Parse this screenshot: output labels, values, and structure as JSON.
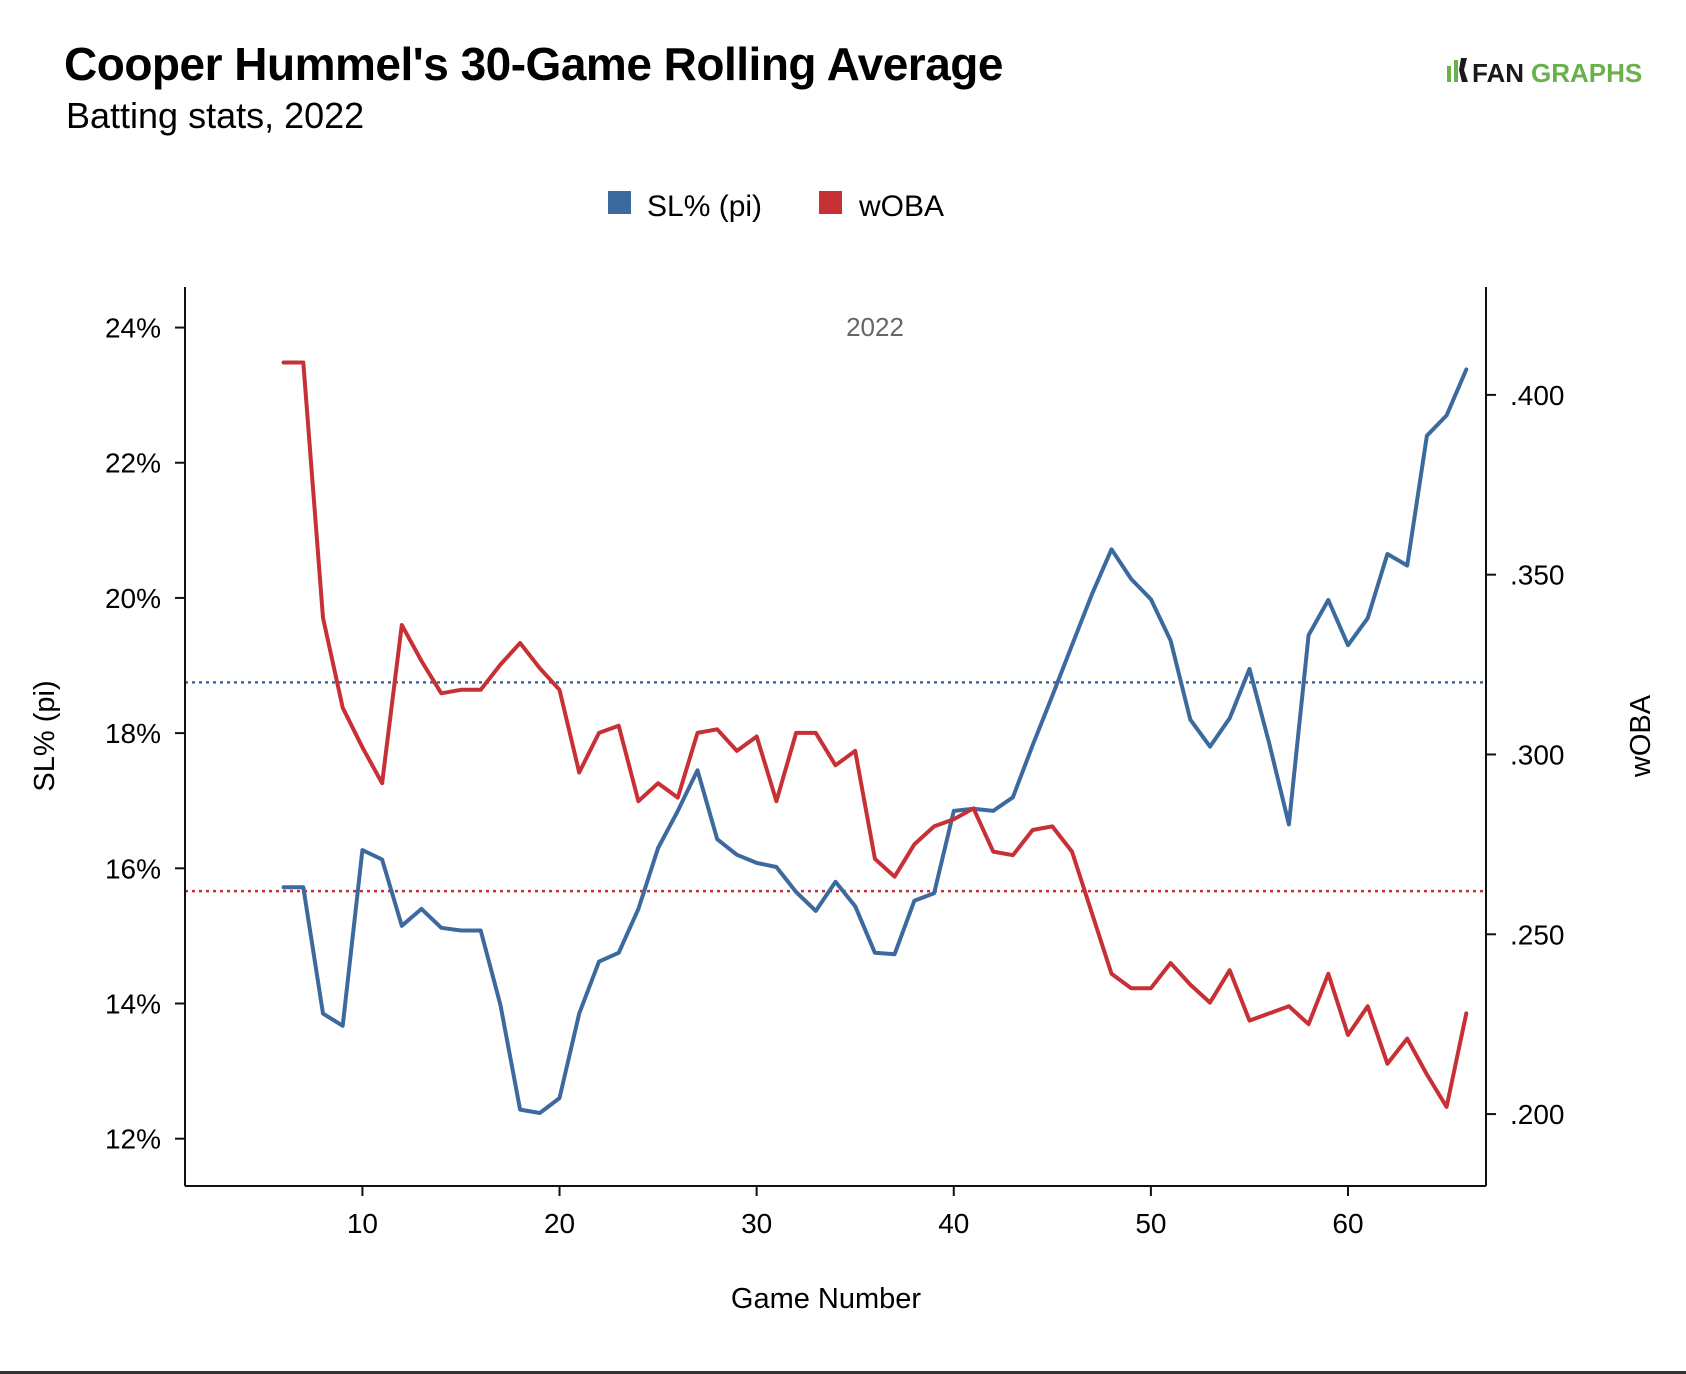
{
  "brand": {
    "logo_fan": "FAN",
    "logo_graphs": "GRAPHS",
    "colors": {
      "fan": "#1a1a1a",
      "graphs": "#6ab04c"
    }
  },
  "chart_data": {
    "type": "line",
    "title": "Cooper Hummel's 30-Game Rolling Average",
    "subtitle": "Batting stats, 2022",
    "panel_label": "2022",
    "xlabel": "Game Number",
    "ylabel_left": "SL% (pi)",
    "ylabel_right": "wOBA",
    "xlim": [
      1,
      67
    ],
    "ylim_left": [
      11.3,
      24.6
    ],
    "ylim_right": [
      0.18,
      0.43
    ],
    "x_ticks": [
      10,
      20,
      30,
      40,
      50,
      60
    ],
    "x_tick_labels": [
      "10",
      "20",
      "30",
      "40",
      "50",
      "60"
    ],
    "y_left_ticks": [
      12,
      14,
      16,
      18,
      20,
      22,
      24
    ],
    "y_left_tick_labels": [
      "12%",
      "14%",
      "16%",
      "18%",
      "20%",
      "22%",
      "24%"
    ],
    "y_right_ticks": [
      0.2,
      0.25,
      0.3,
      0.35,
      0.4
    ],
    "y_right_tick_labels": [
      ".200",
      ".250",
      ".300",
      ".350",
      ".400"
    ],
    "legend_position": "top-center",
    "grid": false,
    "x": [
      6,
      7,
      8,
      9,
      10,
      11,
      12,
      13,
      14,
      15,
      16,
      17,
      18,
      19,
      20,
      21,
      22,
      23,
      24,
      25,
      26,
      27,
      28,
      29,
      30,
      31,
      32,
      33,
      34,
      35,
      36,
      37,
      38,
      39,
      40,
      41,
      42,
      43,
      44,
      45,
      46,
      47,
      48,
      49,
      50,
      51,
      52,
      53,
      54,
      55,
      56,
      57,
      58,
      59,
      60,
      61,
      62,
      63,
      64,
      65,
      66
    ],
    "series": [
      {
        "name": "SL% (pi)",
        "axis": "left",
        "color": "#3d6a9e",
        "reference": 18.75,
        "values": [
          15.72,
          15.72,
          13.85,
          13.67,
          16.27,
          16.13,
          15.15,
          15.4,
          15.12,
          15.08,
          15.08,
          13.98,
          12.43,
          12.38,
          12.6,
          13.85,
          14.62,
          14.75,
          15.4,
          16.3,
          16.85,
          17.45,
          16.43,
          16.2,
          16.08,
          16.02,
          15.65,
          15.37,
          15.8,
          15.44,
          14.75,
          14.73,
          15.52,
          15.63,
          16.85,
          16.88,
          16.85,
          17.05,
          17.82,
          18.55,
          19.3,
          20.05,
          20.72,
          20.28,
          19.98,
          19.37,
          18.2,
          17.8,
          18.22,
          18.95,
          17.85,
          16.65,
          19.45,
          19.97,
          19.3,
          19.7,
          20.65,
          20.48,
          22.4,
          22.7,
          23.38
        ]
      },
      {
        "name": "wOBA",
        "axis": "right",
        "color": "#c73035",
        "reference": 0.262,
        "values": [
          0.409,
          0.409,
          0.338,
          0.313,
          0.302,
          0.292,
          0.336,
          0.326,
          0.317,
          0.318,
          0.318,
          0.325,
          0.331,
          0.324,
          0.318,
          0.295,
          0.306,
          0.308,
          0.287,
          0.292,
          0.288,
          0.306,
          0.307,
          0.301,
          0.305,
          0.287,
          0.306,
          0.306,
          0.297,
          0.301,
          0.271,
          0.266,
          0.275,
          0.28,
          0.282,
          0.285,
          0.273,
          0.272,
          0.279,
          0.28,
          0.273,
          0.256,
          0.239,
          0.235,
          0.235,
          0.242,
          0.236,
          0.231,
          0.24,
          0.226,
          0.228,
          0.23,
          0.225,
          0.239,
          0.222,
          0.23,
          0.214,
          0.221,
          0.211,
          0.202,
          0.228
        ]
      }
    ]
  }
}
